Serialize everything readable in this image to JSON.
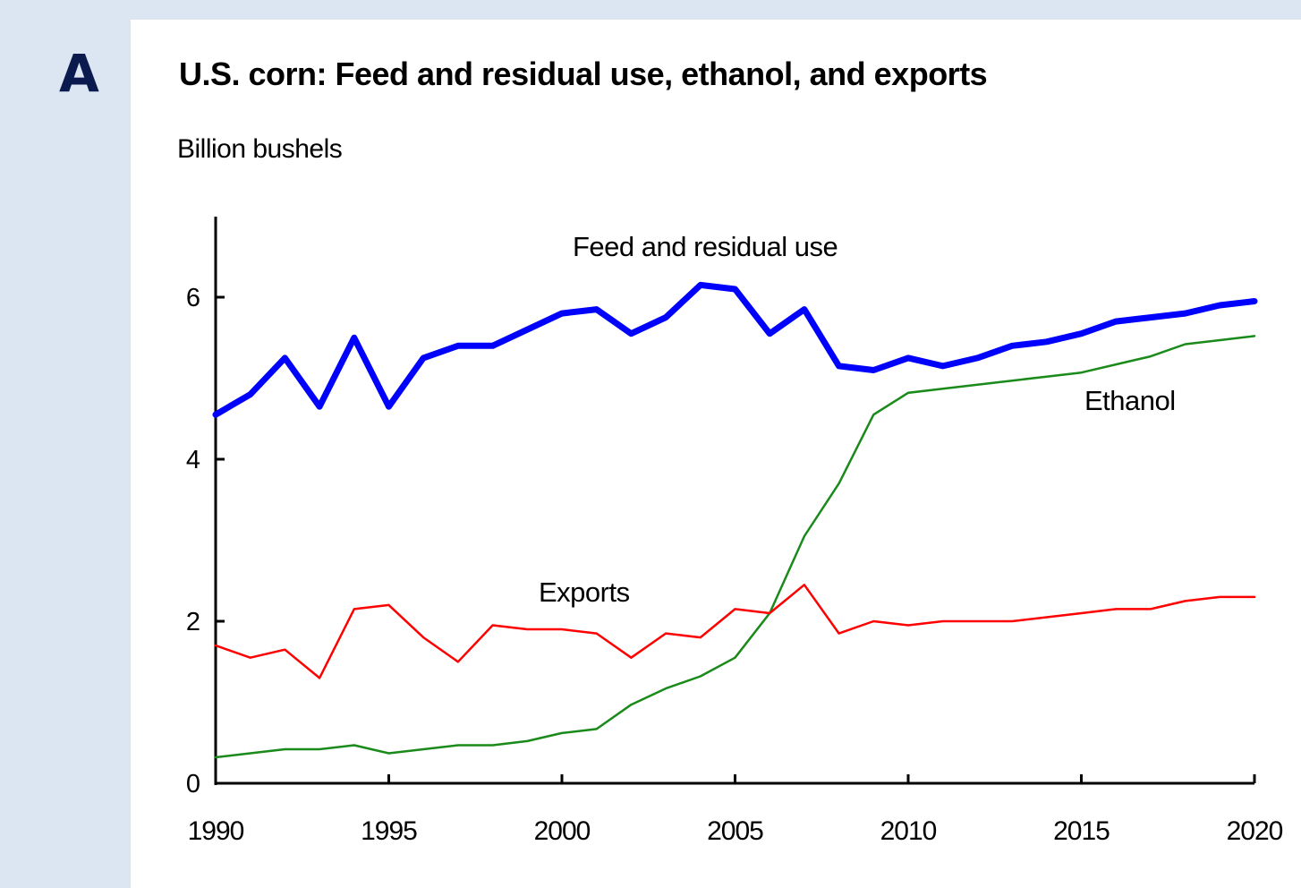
{
  "panel_label": "A",
  "chart_data": {
    "type": "line",
    "title": "U.S. corn: Feed and residual use, ethanol, and exports",
    "ylabel": "Billion bushels",
    "xlabel": "",
    "xlim": [
      1990,
      2020
    ],
    "ylim": [
      0,
      7
    ],
    "x_ticks": [
      1990,
      1995,
      2000,
      2005,
      2010,
      2015,
      2020
    ],
    "y_ticks": [
      0,
      2,
      4,
      6
    ],
    "grid": false,
    "legend": "inline labels",
    "x": [
      1990,
      1991,
      1992,
      1993,
      1994,
      1995,
      1996,
      1997,
      1998,
      1999,
      2000,
      2001,
      2002,
      2003,
      2004,
      2005,
      2006,
      2007,
      2008,
      2009,
      2010,
      2011,
      2012,
      2013,
      2014,
      2015,
      2016,
      2017,
      2018,
      2019,
      2020
    ],
    "series": [
      {
        "name": "Feed and residual use",
        "color": "#0000ff",
        "values": [
          4.55,
          4.8,
          5.25,
          4.65,
          5.5,
          4.65,
          5.25,
          5.4,
          5.4,
          5.6,
          5.8,
          5.85,
          5.55,
          5.75,
          6.15,
          6.1,
          5.55,
          5.85,
          5.15,
          5.1,
          5.25,
          5.15,
          5.25,
          5.4,
          5.45,
          5.55,
          5.7,
          5.75,
          5.8,
          5.9,
          5.95
        ]
      },
      {
        "name": "Ethanol",
        "color": "#1a8a1a",
        "values": [
          0.32,
          0.37,
          0.42,
          0.42,
          0.47,
          0.37,
          0.42,
          0.47,
          0.47,
          0.52,
          0.62,
          0.67,
          0.97,
          1.17,
          1.32,
          1.55,
          2.1,
          3.05,
          3.7,
          4.55,
          4.82,
          4.87,
          4.92,
          4.97,
          5.02,
          5.07,
          5.17,
          5.27,
          5.42,
          5.47,
          5.52
        ]
      },
      {
        "name": "Exports",
        "color": "#ff0000",
        "values": [
          1.7,
          1.55,
          1.65,
          1.3,
          2.15,
          2.2,
          1.8,
          1.5,
          1.95,
          1.9,
          1.9,
          1.85,
          1.55,
          1.85,
          1.8,
          2.15,
          2.1,
          2.45,
          1.85,
          2.0,
          1.95,
          2.0,
          2.0,
          2.0,
          2.05,
          2.1,
          2.15,
          2.15,
          2.25,
          2.3,
          2.3
        ]
      }
    ]
  }
}
